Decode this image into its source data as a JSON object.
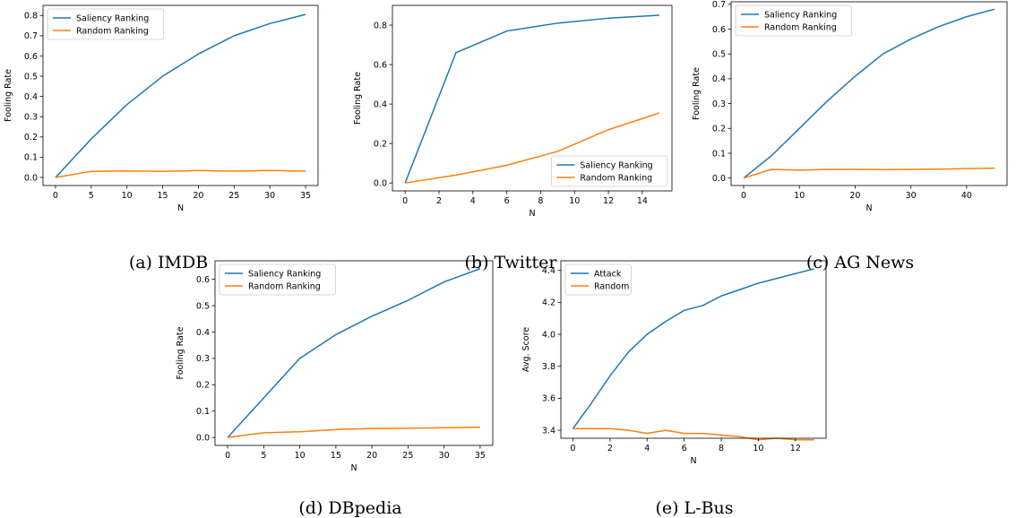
{
  "colors": {
    "series_1": "#1f77b4",
    "series_2": "#ff7f0e",
    "axis": "#000000"
  },
  "chart_data": [
    {
      "type": "line",
      "caption": "(a) IMDB",
      "xlabel": "N",
      "ylabel": "Fooling Rate",
      "xlim": [
        -1.75,
        36.75
      ],
      "ylim": [
        -0.04,
        0.85
      ],
      "xticks": [
        0,
        5,
        10,
        15,
        20,
        25,
        30,
        35
      ],
      "yticks": [
        0.0,
        0.1,
        0.2,
        0.3,
        0.4,
        0.5,
        0.6,
        0.7,
        0.8
      ],
      "legend_position": "top-left",
      "x": [
        0,
        5,
        10,
        15,
        20,
        25,
        30,
        35
      ],
      "series": [
        {
          "name": "Saliency Ranking",
          "values": [
            0.0,
            0.19,
            0.36,
            0.5,
            0.61,
            0.7,
            0.76,
            0.805
          ]
        },
        {
          "name": "Random Ranking",
          "values": [
            0.0,
            0.03,
            0.032,
            0.03,
            0.034,
            0.031,
            0.034,
            0.031
          ]
        }
      ]
    },
    {
      "type": "line",
      "caption": "(b) Twitter",
      "xlabel": "N",
      "ylabel": "Fooling Rate",
      "xlim": [
        -0.75,
        15.75
      ],
      "ylim": [
        -0.04,
        0.9
      ],
      "xticks": [
        0,
        2,
        4,
        6,
        8,
        10,
        12,
        14
      ],
      "yticks": [
        0.0,
        0.2,
        0.4,
        0.6,
        0.8
      ],
      "legend_position": "bottom-right",
      "x": [
        0,
        3,
        6,
        9,
        12,
        15
      ],
      "series": [
        {
          "name": "Saliency Ranking",
          "values": [
            0.0,
            0.66,
            0.77,
            0.81,
            0.835,
            0.85
          ]
        },
        {
          "name": "Random Ranking",
          "values": [
            0.0,
            0.04,
            0.09,
            0.16,
            0.27,
            0.355
          ]
        }
      ]
    },
    {
      "type": "line",
      "caption": "(c) AG News",
      "xlabel": "N",
      "ylabel": "Fooling Rate",
      "xlim": [
        -2.25,
        47.25
      ],
      "ylim": [
        -0.03,
        0.71
      ],
      "xticks": [
        0,
        10,
        20,
        30,
        40
      ],
      "yticks": [
        0.0,
        0.1,
        0.2,
        0.3,
        0.4,
        0.5,
        0.6,
        0.7
      ],
      "legend_position": "top-left",
      "x": [
        0,
        5,
        10,
        15,
        20,
        25,
        30,
        35,
        40,
        45
      ],
      "series": [
        {
          "name": "Saliency Ranking",
          "values": [
            0.0,
            0.09,
            0.2,
            0.31,
            0.41,
            0.5,
            0.56,
            0.61,
            0.65,
            0.68
          ]
        },
        {
          "name": "Random Ranking",
          "values": [
            0.0,
            0.035,
            0.032,
            0.035,
            0.035,
            0.034,
            0.035,
            0.036,
            0.038,
            0.04
          ]
        }
      ]
    },
    {
      "type": "line",
      "caption": "(d) DBpedia",
      "xlabel": "N",
      "ylabel": "Fooling Rate",
      "xlim": [
        -1.75,
        36.75
      ],
      "ylim": [
        -0.03,
        0.67
      ],
      "xticks": [
        0,
        5,
        10,
        15,
        20,
        25,
        30,
        35
      ],
      "yticks": [
        0.0,
        0.1,
        0.2,
        0.3,
        0.4,
        0.5,
        0.6
      ],
      "legend_position": "top-left",
      "x": [
        0,
        5,
        10,
        15,
        20,
        25,
        30,
        35
      ],
      "series": [
        {
          "name": "Saliency Ranking",
          "values": [
            0.0,
            0.15,
            0.3,
            0.39,
            0.46,
            0.52,
            0.59,
            0.64
          ]
        },
        {
          "name": "Random Ranking",
          "values": [
            0.0,
            0.018,
            0.022,
            0.03,
            0.034,
            0.035,
            0.037,
            0.039
          ]
        }
      ]
    },
    {
      "type": "line",
      "caption": "(e) L-Bus",
      "xlabel": "N",
      "ylabel": "Avg. Score",
      "xlim": [
        -0.65,
        13.65
      ],
      "ylim": [
        3.35,
        4.46
      ],
      "xticks": [
        0,
        2,
        4,
        6,
        8,
        10,
        12
      ],
      "yticks": [
        3.4,
        3.6,
        3.8,
        4.0,
        4.2,
        4.4
      ],
      "legend_position": "top-left",
      "x": [
        0,
        1,
        2,
        3,
        4,
        5,
        6,
        7,
        8,
        9,
        10,
        11,
        12,
        13
      ],
      "series": [
        {
          "name": "Attack",
          "values": [
            3.41,
            3.57,
            3.74,
            3.89,
            4.0,
            4.08,
            4.15,
            4.18,
            4.24,
            4.28,
            4.32,
            4.35,
            4.38,
            4.41
          ]
        },
        {
          "name": "Random",
          "values": [
            3.41,
            3.41,
            3.41,
            3.4,
            3.38,
            3.4,
            3.38,
            3.38,
            3.37,
            3.36,
            3.34,
            3.35,
            3.34,
            3.34
          ]
        }
      ]
    }
  ]
}
